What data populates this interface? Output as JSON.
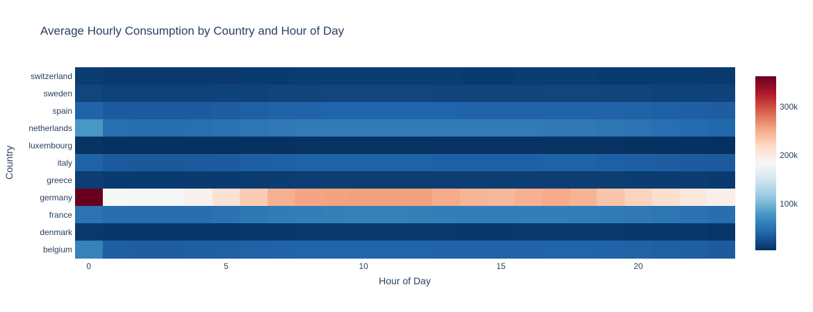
{
  "title": "Average Hourly Consumption by Country and Hour of Day",
  "x_axis": {
    "title": "Hour of Day",
    "ticks": [
      {
        "label": "0",
        "value": 0
      },
      {
        "label": "5",
        "value": 5
      },
      {
        "label": "10",
        "value": 10
      },
      {
        "label": "15",
        "value": 15
      },
      {
        "label": "20",
        "value": 20
      }
    ]
  },
  "y_axis": {
    "title": "Country",
    "categories_top_to_bottom": [
      "switzerland",
      "sweden",
      "spain",
      "netherlands",
      "luxembourg",
      "italy",
      "greece",
      "germany",
      "france",
      "denmark",
      "belgium"
    ]
  },
  "colorbar": {
    "position": "right",
    "ticks": [
      {
        "label": "300k",
        "value": 300000
      },
      {
        "label": "200k",
        "value": 200000
      },
      {
        "label": "100k",
        "value": 100000
      }
    ]
  },
  "style": {
    "font_color": "#2a3f5f",
    "background": "#ffffff"
  },
  "chart_data": {
    "type": "heatmap",
    "title": "Average Hourly Consumption by Country and Hour of Day",
    "xlabel": "Hour of Day",
    "ylabel": "Country",
    "x": [
      0,
      1,
      2,
      3,
      4,
      5,
      6,
      7,
      8,
      9,
      10,
      11,
      12,
      13,
      14,
      15,
      16,
      17,
      18,
      19,
      20,
      21,
      22,
      23
    ],
    "x_ticks_shown": [
      0,
      5,
      10,
      15,
      20
    ],
    "grid": false,
    "legend_position": "colorbar-right",
    "colorscale_name": "RdBu reversed (blue = low, white = mid, red = high)",
    "colorscale": [
      {
        "t": 0.0,
        "color": "#053061"
      },
      {
        "t": 0.1,
        "color": "#2166ac"
      },
      {
        "t": 0.2,
        "color": "#4393c3"
      },
      {
        "t": 0.3,
        "color": "#92c5de"
      },
      {
        "t": 0.4,
        "color": "#d1e5f0"
      },
      {
        "t": 0.5,
        "color": "#f7f7f7"
      },
      {
        "t": 0.6,
        "color": "#fddbc7"
      },
      {
        "t": 0.7,
        "color": "#f4a582"
      },
      {
        "t": 0.8,
        "color": "#d6604d"
      },
      {
        "t": 0.9,
        "color": "#b2182b"
      },
      {
        "t": 1.0,
        "color": "#67001f"
      }
    ],
    "zmin": 5000,
    "zmax": 362000,
    "series": [
      {
        "name": "switzerland",
        "values": [
          13000,
          11000,
          11000,
          11000,
          11000,
          11000,
          12000,
          12000,
          13000,
          13000,
          13000,
          13000,
          13000,
          13000,
          12000,
          12000,
          13000,
          13000,
          13000,
          12000,
          12000,
          12000,
          12000,
          11000
        ]
      },
      {
        "name": "sweden",
        "values": [
          19000,
          16000,
          16000,
          16000,
          16000,
          17000,
          17000,
          18000,
          18000,
          19000,
          19000,
          19000,
          19000,
          18000,
          18000,
          18000,
          18000,
          19000,
          19000,
          18000,
          18000,
          17000,
          17000,
          17000
        ]
      },
      {
        "name": "spain",
        "values": [
          39000,
          34000,
          33000,
          33000,
          34000,
          35000,
          37000,
          38000,
          39000,
          40000,
          40000,
          40000,
          40000,
          40000,
          39000,
          39000,
          39000,
          39000,
          39000,
          39000,
          38000,
          37000,
          36000,
          35000
        ]
      },
      {
        "name": "netherlands",
        "values": [
          79000,
          48000,
          47000,
          47000,
          48000,
          50000,
          53000,
          55000,
          57000,
          58000,
          58000,
          58000,
          58000,
          57000,
          57000,
          57000,
          57000,
          56000,
          55000,
          53000,
          51000,
          48000,
          45000,
          42000
        ]
      },
      {
        "name": "luxembourg",
        "values": [
          7000,
          5000,
          5000,
          5000,
          5000,
          5000,
          6000,
          6000,
          7000,
          7000,
          7000,
          7000,
          7000,
          7000,
          7000,
          7000,
          7000,
          7000,
          7000,
          7000,
          6000,
          6000,
          6000,
          5000
        ]
      },
      {
        "name": "italy",
        "values": [
          38000,
          33000,
          32000,
          32000,
          33000,
          34000,
          36000,
          37000,
          38000,
          38000,
          38000,
          38000,
          38000,
          37000,
          37000,
          37000,
          37000,
          38000,
          38000,
          37000,
          36000,
          35000,
          34000,
          33000
        ]
      },
      {
        "name": "greece",
        "values": [
          14000,
          12000,
          12000,
          12000,
          12000,
          12000,
          13000,
          13000,
          14000,
          14000,
          14000,
          14000,
          14000,
          14000,
          14000,
          14000,
          14000,
          14000,
          14000,
          14000,
          13000,
          13000,
          13000,
          12000
        ]
      },
      {
        "name": "germany",
        "values": [
          362000,
          183000,
          181000,
          182000,
          191000,
          210000,
          229000,
          247000,
          254000,
          256000,
          257000,
          257000,
          257000,
          250000,
          244000,
          242000,
          247000,
          251000,
          245000,
          234000,
          224000,
          214000,
          203000,
          194000
        ]
      },
      {
        "name": "france",
        "values": [
          51000,
          48000,
          47000,
          47000,
          48000,
          50000,
          54000,
          58000,
          60000,
          61000,
          62000,
          62000,
          61000,
          60000,
          59000,
          59000,
          60000,
          60000,
          59000,
          57000,
          55000,
          53000,
          50000,
          48000
        ]
      },
      {
        "name": "denmark",
        "values": [
          11000,
          9000,
          9000,
          9000,
          9000,
          9000,
          10000,
          10000,
          11000,
          11000,
          11000,
          11000,
          11000,
          11000,
          10000,
          10000,
          11000,
          11000,
          11000,
          11000,
          10000,
          10000,
          10000,
          9000
        ]
      },
      {
        "name": "belgium",
        "values": [
          63000,
          36000,
          35000,
          35000,
          36000,
          37000,
          38000,
          39000,
          40000,
          40000,
          40000,
          40000,
          40000,
          39000,
          39000,
          39000,
          39000,
          40000,
          40000,
          39000,
          38000,
          37000,
          36000,
          34000
        ]
      }
    ]
  }
}
